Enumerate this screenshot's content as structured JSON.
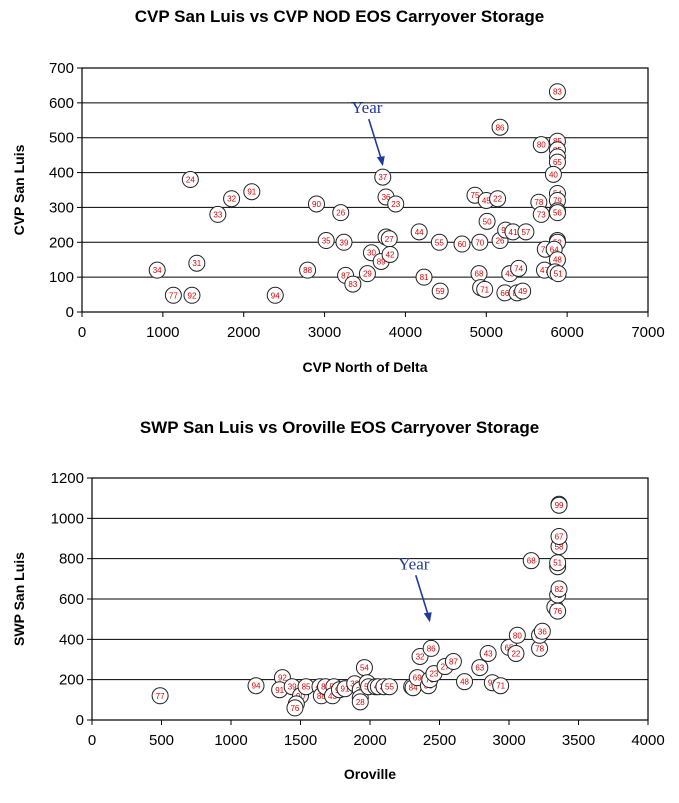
{
  "charts": [
    {
      "title": "CVP San Luis vs CVP NOD EOS Carryover Storage"
    },
    {
      "title": "SWP San Luis vs Oroville EOS Carryover Storage"
    }
  ],
  "chart_data": [
    {
      "type": "scatter",
      "title": "CVP San Luis vs CVP NOD EOS Carryover Storage",
      "xlabel": "CVP North of Delta",
      "ylabel": "CVP San Luis",
      "xlim": [
        0,
        7000
      ],
      "ylim": [
        0,
        700
      ],
      "xticks": [
        0,
        1000,
        2000,
        3000,
        4000,
        5000,
        6000,
        7000
      ],
      "yticks": [
        0,
        100,
        200,
        300,
        400,
        500,
        600,
        700
      ],
      "grid": "horizontal",
      "point_color": "#e00000",
      "annotation": {
        "text": "Year",
        "target": [
          3720,
          387
        ],
        "color": "#1f3a9a"
      },
      "points": [
        {
          "label": "34",
          "x": 930,
          "y": 120
        },
        {
          "label": "77",
          "x": 1130,
          "y": 48
        },
        {
          "label": "92",
          "x": 1360,
          "y": 48
        },
        {
          "label": "24",
          "x": 1340,
          "y": 380
        },
        {
          "label": "31",
          "x": 1420,
          "y": 140
        },
        {
          "label": "33",
          "x": 1680,
          "y": 280
        },
        {
          "label": "32",
          "x": 1850,
          "y": 325
        },
        {
          "label": "91",
          "x": 2100,
          "y": 345
        },
        {
          "label": "94",
          "x": 2390,
          "y": 48
        },
        {
          "label": "88",
          "x": 2790,
          "y": 120
        },
        {
          "label": "90",
          "x": 2900,
          "y": 310
        },
        {
          "label": "35",
          "x": 3020,
          "y": 205
        },
        {
          "label": "26",
          "x": 3200,
          "y": 285
        },
        {
          "label": "39",
          "x": 3240,
          "y": 200
        },
        {
          "label": "87",
          "x": 3260,
          "y": 105
        },
        {
          "label": "83",
          "x": 3350,
          "y": 80
        },
        {
          "label": "29",
          "x": 3530,
          "y": 110
        },
        {
          "label": "30",
          "x": 3580,
          "y": 170
        },
        {
          "label": "37",
          "x": 3720,
          "y": 387
        },
        {
          "label": "36",
          "x": 3760,
          "y": 330
        },
        {
          "label": "89",
          "x": 3700,
          "y": 145
        },
        {
          "label": "28",
          "x": 3760,
          "y": 215
        },
        {
          "label": "27",
          "x": 3800,
          "y": 210
        },
        {
          "label": "42",
          "x": 3810,
          "y": 165
        },
        {
          "label": "23",
          "x": 3880,
          "y": 310
        },
        {
          "label": "44",
          "x": 4170,
          "y": 230
        },
        {
          "label": "81",
          "x": 4230,
          "y": 100
        },
        {
          "label": "55",
          "x": 4420,
          "y": 200
        },
        {
          "label": "59",
          "x": 4430,
          "y": 60
        },
        {
          "label": "60",
          "x": 4700,
          "y": 195
        },
        {
          "label": "75",
          "x": 4860,
          "y": 335
        },
        {
          "label": "70",
          "x": 4920,
          "y": 200
        },
        {
          "label": "68",
          "x": 4910,
          "y": 110
        },
        {
          "label": "61",
          "x": 4930,
          "y": 70
        },
        {
          "label": "71",
          "x": 4980,
          "y": 65
        },
        {
          "label": "45",
          "x": 5000,
          "y": 320
        },
        {
          "label": "50",
          "x": 5010,
          "y": 260
        },
        {
          "label": "22",
          "x": 5140,
          "y": 325
        },
        {
          "label": "86",
          "x": 5170,
          "y": 530
        },
        {
          "label": "26",
          "x": 5170,
          "y": 205
        },
        {
          "label": "93",
          "x": 5240,
          "y": 235
        },
        {
          "label": "66",
          "x": 5230,
          "y": 55
        },
        {
          "label": "43",
          "x": 5290,
          "y": 110
        },
        {
          "label": "41",
          "x": 5330,
          "y": 230
        },
        {
          "label": "82",
          "x": 5380,
          "y": 55
        },
        {
          "label": "74",
          "x": 5400,
          "y": 125
        },
        {
          "label": "49",
          "x": 5450,
          "y": 60
        },
        {
          "label": "57",
          "x": 5490,
          "y": 230
        },
        {
          "label": "80",
          "x": 5680,
          "y": 480
        },
        {
          "label": "78",
          "x": 5650,
          "y": 315
        },
        {
          "label": "73",
          "x": 5680,
          "y": 280
        },
        {
          "label": "72",
          "x": 5730,
          "y": 180
        },
        {
          "label": "47",
          "x": 5720,
          "y": 120
        },
        {
          "label": "83",
          "x": 5880,
          "y": 632
        },
        {
          "label": "85",
          "x": 5880,
          "y": 490
        },
        {
          "label": "85",
          "x": 5880,
          "y": 465
        },
        {
          "label": "62",
          "x": 5880,
          "y": 445
        },
        {
          "label": "65",
          "x": 5880,
          "y": 430
        },
        {
          "label": "40",
          "x": 5830,
          "y": 395
        },
        {
          "label": "54",
          "x": 5880,
          "y": 340
        },
        {
          "label": "79",
          "x": 5880,
          "y": 320
        },
        {
          "label": "84",
          "x": 5880,
          "y": 290
        },
        {
          "label": "56",
          "x": 5880,
          "y": 285
        },
        {
          "label": "38",
          "x": 5880,
          "y": 205
        },
        {
          "label": "52",
          "x": 5880,
          "y": 200
        },
        {
          "label": "64",
          "x": 5840,
          "y": 180
        },
        {
          "label": "48",
          "x": 5880,
          "y": 150
        },
        {
          "label": "53",
          "x": 5850,
          "y": 115
        },
        {
          "label": "51",
          "x": 5890,
          "y": 110
        }
      ]
    },
    {
      "type": "scatter",
      "title": "SWP San Luis vs Oroville EOS Carryover Storage",
      "xlabel": "Oroville",
      "ylabel": "SWP San Luis",
      "xlim": [
        0,
        4000
      ],
      "ylim": [
        0,
        1200
      ],
      "xticks": [
        0,
        500,
        1000,
        1500,
        2000,
        2500,
        3000,
        3500,
        4000
      ],
      "yticks": [
        0,
        200,
        400,
        600,
        800,
        1000,
        1200
      ],
      "grid": "horizontal",
      "point_color": "#e00000",
      "annotation": {
        "text": "Year",
        "target": [
          2430,
          430
        ],
        "color": "#1f3a9a"
      },
      "points": [
        {
          "label": "77",
          "x": 490,
          "y": 120
        },
        {
          "label": "94",
          "x": 1180,
          "y": 170
        },
        {
          "label": "92",
          "x": 1370,
          "y": 210
        },
        {
          "label": "91",
          "x": 1350,
          "y": 150
        },
        {
          "label": "39",
          "x": 1440,
          "y": 165
        },
        {
          "label": "90",
          "x": 1500,
          "y": 120
        },
        {
          "label": "24",
          "x": 1470,
          "y": 80
        },
        {
          "label": "76",
          "x": 1460,
          "y": 60
        },
        {
          "label": "85",
          "x": 1540,
          "y": 165
        },
        {
          "label": "45",
          "x": 1640,
          "y": 165
        },
        {
          "label": "88",
          "x": 1650,
          "y": 120
        },
        {
          "label": "86",
          "x": 1680,
          "y": 165
        },
        {
          "label": "57",
          "x": 1740,
          "y": 165
        },
        {
          "label": "43",
          "x": 1730,
          "y": 120
        },
        {
          "label": "93",
          "x": 1780,
          "y": 150
        },
        {
          "label": "91",
          "x": 1820,
          "y": 155
        },
        {
          "label": "33",
          "x": 1890,
          "y": 180
        },
        {
          "label": "31",
          "x": 1930,
          "y": 150
        },
        {
          "label": "22",
          "x": 1930,
          "y": 110
        },
        {
          "label": "28",
          "x": 1930,
          "y": 90
        },
        {
          "label": "54",
          "x": 1960,
          "y": 260
        },
        {
          "label": "37",
          "x": 1980,
          "y": 185
        },
        {
          "label": "52",
          "x": 1990,
          "y": 165
        },
        {
          "label": "26",
          "x": 2040,
          "y": 165
        },
        {
          "label": "41",
          "x": 2060,
          "y": 165
        },
        {
          "label": "30",
          "x": 2100,
          "y": 165
        },
        {
          "label": "55",
          "x": 2140,
          "y": 165
        },
        {
          "label": "25",
          "x": 2300,
          "y": 165
        },
        {
          "label": "84",
          "x": 2310,
          "y": 160
        },
        {
          "label": "69",
          "x": 2340,
          "y": 210
        },
        {
          "label": "38",
          "x": 2420,
          "y": 170
        },
        {
          "label": "32",
          "x": 2360,
          "y": 315
        },
        {
          "label": "86",
          "x": 2440,
          "y": 355
        },
        {
          "label": "73",
          "x": 2430,
          "y": 200
        },
        {
          "label": "23",
          "x": 2460,
          "y": 230
        },
        {
          "label": "27",
          "x": 2540,
          "y": 265
        },
        {
          "label": "87",
          "x": 2600,
          "y": 290
        },
        {
          "label": "48",
          "x": 2680,
          "y": 190
        },
        {
          "label": "63",
          "x": 2790,
          "y": 260
        },
        {
          "label": "43",
          "x": 2850,
          "y": 330
        },
        {
          "label": "93",
          "x": 2880,
          "y": 185
        },
        {
          "label": "71",
          "x": 2940,
          "y": 170
        },
        {
          "label": "65",
          "x": 3000,
          "y": 360
        },
        {
          "label": "80",
          "x": 3060,
          "y": 420
        },
        {
          "label": "22",
          "x": 3050,
          "y": 330
        },
        {
          "label": "68",
          "x": 3160,
          "y": 790
        },
        {
          "label": "78",
          "x": 3220,
          "y": 355
        },
        {
          "label": "50",
          "x": 3220,
          "y": 420
        },
        {
          "label": "36",
          "x": 3240,
          "y": 440
        },
        {
          "label": "75",
          "x": 3330,
          "y": 560
        },
        {
          "label": "76",
          "x": 3350,
          "y": 540
        },
        {
          "label": "72",
          "x": 3350,
          "y": 620
        },
        {
          "label": "82",
          "x": 3360,
          "y": 650
        },
        {
          "label": "34",
          "x": 3350,
          "y": 760
        },
        {
          "label": "51",
          "x": 3350,
          "y": 780
        },
        {
          "label": "58",
          "x": 3360,
          "y": 860
        },
        {
          "label": "67",
          "x": 3360,
          "y": 910
        },
        {
          "label": "69",
          "x": 3360,
          "y": 1070
        },
        {
          "label": "99",
          "x": 3360,
          "y": 1065
        }
      ]
    }
  ]
}
